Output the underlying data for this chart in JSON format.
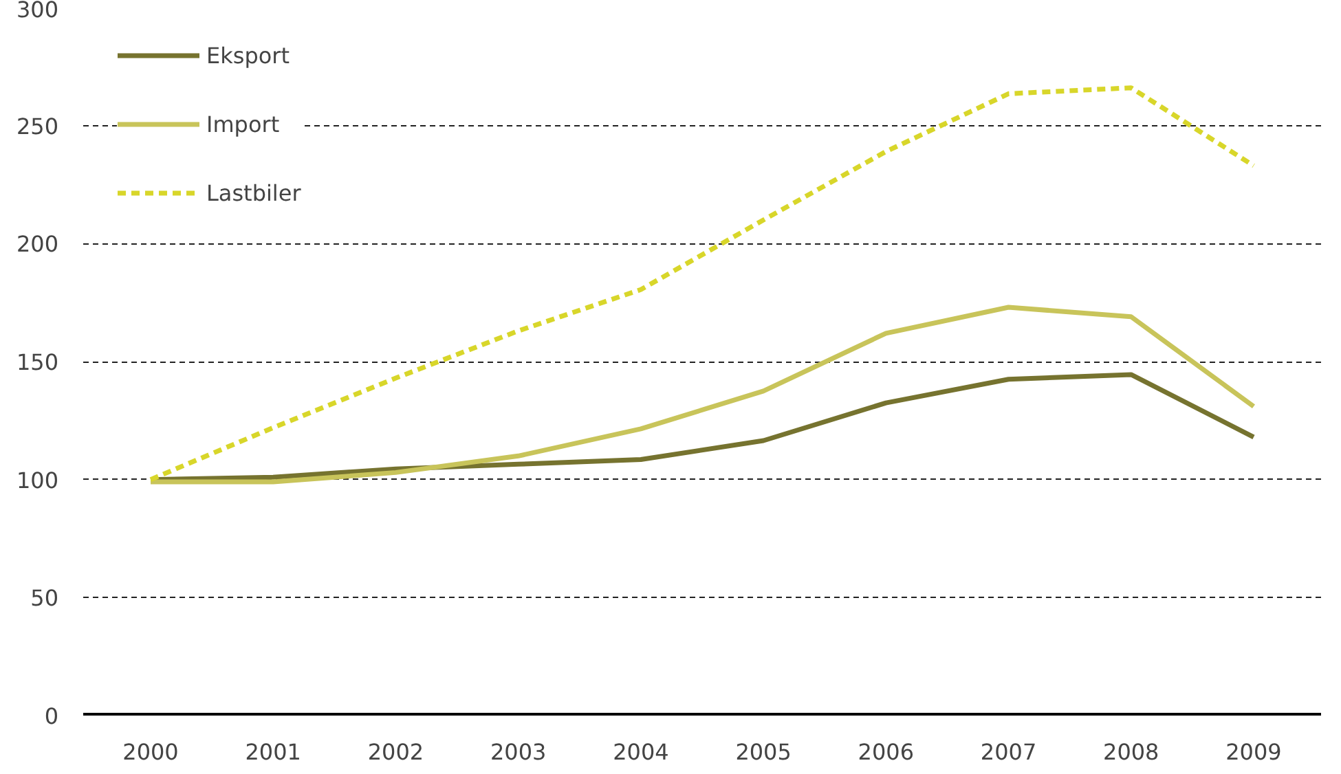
{
  "chart_data": {
    "type": "line",
    "categories": [
      "2000",
      "2001",
      "2002",
      "2003",
      "2004",
      "2005",
      "2006",
      "2007",
      "2008",
      "2009"
    ],
    "series": [
      {
        "name": "Eksport",
        "color": "#76732f",
        "values": [
          100,
          101,
          104.5,
          106.5,
          108.5,
          116.5,
          132.5,
          142.5,
          144.5,
          118
        ]
      },
      {
        "name": "Import",
        "color": "#c8c45a",
        "values": [
          99,
          99,
          103,
          110,
          121.5,
          137.5,
          162,
          173,
          169,
          131
        ]
      },
      {
        "name": "Lastbiler",
        "color": "#d8d62a",
        "line_style": "dashed",
        "values": [
          100,
          122,
          143,
          163,
          180.5,
          210,
          239,
          263.5,
          266,
          233
        ]
      }
    ],
    "ylim": [
      0,
      300
    ],
    "yticks": [
      0,
      50,
      100,
      150,
      200,
      250,
      300
    ],
    "grid": "y",
    "legend": "top left",
    "line_style": "solid",
    "marker": "none"
  }
}
